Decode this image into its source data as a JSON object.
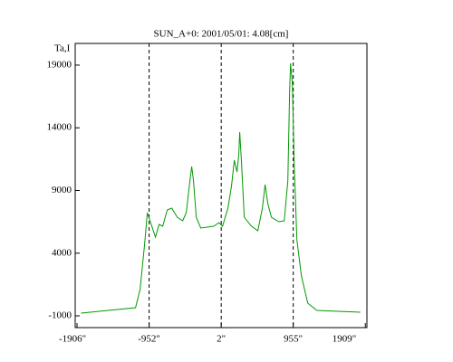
{
  "chart_data": {
    "type": "line",
    "title": "SUN_A+0: 2001/05/01: 4.08[cm]",
    "y_label": "Ta,I",
    "x": [
      -1852,
      -1132,
      -1072,
      -1012,
      -976,
      -916,
      -868,
      -820,
      -772,
      -712,
      -652,
      -580,
      -508,
      -460,
      -412,
      -388,
      -364,
      -328,
      -268,
      -100,
      -28,
      19,
      91,
      139,
      175,
      211,
      235,
      247,
      271,
      307,
      403,
      487,
      547,
      583,
      619,
      667,
      763,
      835,
      883,
      907,
      919,
      943,
      967,
      1003,
      1063,
      1147,
      1267,
      1843
    ],
    "series": [
      {
        "name": "SUN_A+0",
        "color": "#009900",
        "values": [
          -783,
          -350,
          1094,
          4704,
          7231,
          6148,
          5282,
          6293,
          6148,
          7448,
          7592,
          6870,
          6582,
          7231,
          9758,
          10914,
          9758,
          6870,
          6004,
          6148,
          6437,
          6148,
          7592,
          9397,
          11419,
          10480,
          11924,
          13657,
          11202,
          6870,
          6148,
          5787,
          7592,
          9469,
          7953,
          6870,
          6509,
          6582,
          9758,
          16978,
          19144,
          17556,
          11202,
          5065,
          2177,
          11,
          -566,
          -711
        ]
      }
    ],
    "xlim": [
      -1930,
      1930
    ],
    "ylim": [
      -1940,
      20730
    ],
    "xticks": [
      {
        "value": -1906,
        "label": "-1906\""
      },
      {
        "value": -952,
        "label": "-952\""
      },
      {
        "value": 2,
        "label": "2\""
      },
      {
        "value": 955,
        "label": "955\""
      },
      {
        "value": 1909,
        "label": "1909\""
      }
    ],
    "yticks": [
      -1000,
      4000,
      9000,
      14000,
      19000
    ],
    "dashed_lines_at": [
      -952,
      2,
      955
    ]
  }
}
